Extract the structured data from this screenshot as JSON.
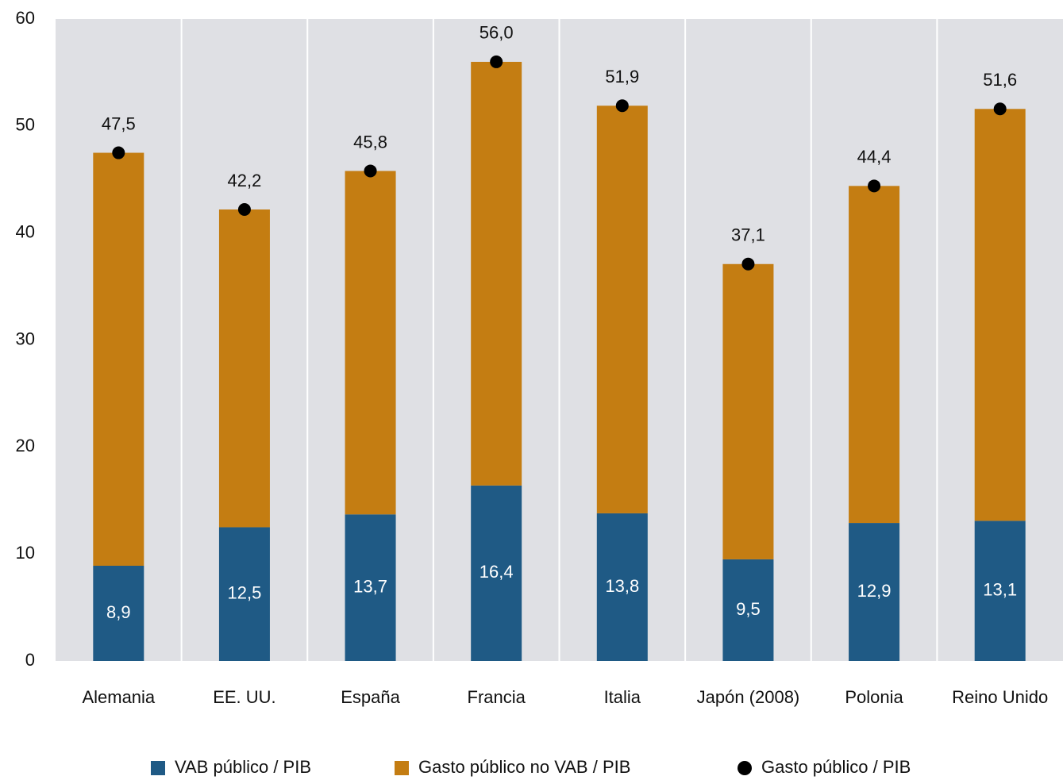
{
  "chart_data": {
    "type": "bar",
    "stacked": true,
    "categories": [
      "Alemania",
      "EE. UU.",
      "España",
      "Francia",
      "Italia",
      "Japón (2008)",
      "Polonia",
      "Reino Unido"
    ],
    "series": [
      {
        "name": "VAB público / PIB",
        "color": "#1f5a85",
        "values": [
          8.9,
          12.5,
          13.7,
          16.4,
          13.8,
          9.5,
          12.9,
          13.1
        ],
        "value_labels": [
          "8,9",
          "12,5",
          "13,7",
          "16,4",
          "13,8",
          "9,5",
          "12,9",
          "13,1"
        ]
      },
      {
        "name": "Gasto público no VAB / PIB",
        "color": "#c47d12",
        "values": [
          38.6,
          29.7,
          32.1,
          39.6,
          38.1,
          27.6,
          31.5,
          38.5
        ]
      },
      {
        "name": "Gasto público / PIB",
        "color": "#000000",
        "type": "dot",
        "values": [
          47.5,
          42.2,
          45.8,
          56.0,
          51.9,
          37.1,
          44.4,
          51.6
        ],
        "value_labels": [
          "47,5",
          "42,2",
          "45,8",
          "56,0",
          "51,9",
          "37,1",
          "44,4",
          "51,6"
        ]
      }
    ],
    "ylim": [
      0,
      60
    ],
    "yticks": [
      0,
      10,
      20,
      30,
      40,
      50,
      60
    ],
    "grid": true,
    "legend": "bottom"
  }
}
